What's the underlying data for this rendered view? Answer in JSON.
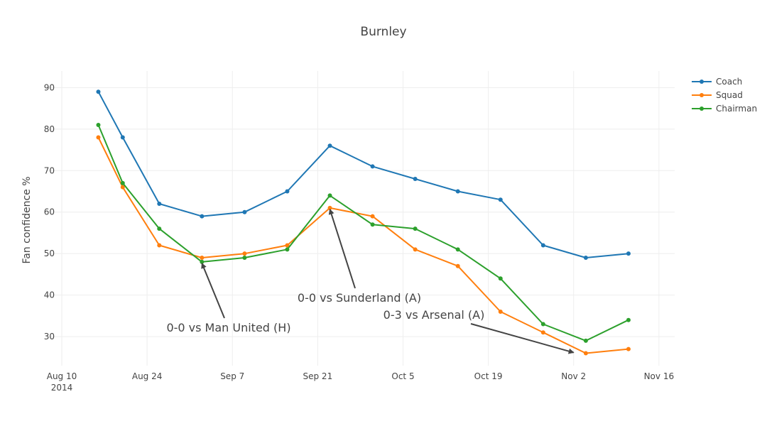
{
  "chart_data": {
    "type": "line",
    "title": "Burnley",
    "xlabel": "",
    "ylabel": "Fan confidence %",
    "x": [
      "2014-08-16",
      "2014-08-20",
      "2014-08-26",
      "2014-09-02",
      "2014-09-09",
      "2014-09-16",
      "2014-09-23",
      "2014-09-30",
      "2014-10-07",
      "2014-10-14",
      "2014-10-21",
      "2014-10-28",
      "2014-11-04",
      "2014-11-11"
    ],
    "series": [
      {
        "name": "Coach",
        "color": "#1f77b4",
        "values": [
          89,
          78,
          62,
          59,
          60,
          65,
          76,
          71,
          68,
          65,
          63,
          52,
          49,
          50
        ]
      },
      {
        "name": "Squad",
        "color": "#ff7f0e",
        "values": [
          78,
          66,
          52,
          49,
          50,
          52,
          61,
          59,
          51,
          47,
          36,
          31,
          26,
          27
        ]
      },
      {
        "name": "Chairman",
        "color": "#2ca02c",
        "values": [
          81,
          67,
          56,
          48,
          49,
          51,
          64,
          57,
          56,
          51,
          44,
          33,
          29,
          34
        ]
      }
    ],
    "xlim": [
      "2014-08-10",
      "2014-11-18"
    ],
    "ylim": [
      23,
      94
    ],
    "x_ticks": [
      {
        "date": "2014-08-10",
        "label": "Aug 10",
        "sublabel": "2014"
      },
      {
        "date": "2014-08-24",
        "label": "Aug 24",
        "sublabel": ""
      },
      {
        "date": "2014-09-07",
        "label": "Sep 7",
        "sublabel": ""
      },
      {
        "date": "2014-09-21",
        "label": "Sep 21",
        "sublabel": ""
      },
      {
        "date": "2014-10-05",
        "label": "Oct 5",
        "sublabel": ""
      },
      {
        "date": "2014-10-19",
        "label": "Oct 19",
        "sublabel": ""
      },
      {
        "date": "2014-11-02",
        "label": "Nov 2",
        "sublabel": ""
      },
      {
        "date": "2014-11-16",
        "label": "Nov 16",
        "sublabel": ""
      }
    ],
    "y_ticks": [
      30,
      40,
      50,
      60,
      70,
      80,
      90
    ],
    "grid": true,
    "legend_position": "top-right",
    "annotations": [
      {
        "text": "0-0 vs Man United (H)",
        "x": "2014-09-02",
        "y": 48
      },
      {
        "text": "0-0 vs Sunderland (A)",
        "x": "2014-09-23",
        "y": 61
      },
      {
        "text": "0-3 vs Arsenal (A)",
        "x": "2014-11-02",
        "y": 26.5
      }
    ]
  }
}
